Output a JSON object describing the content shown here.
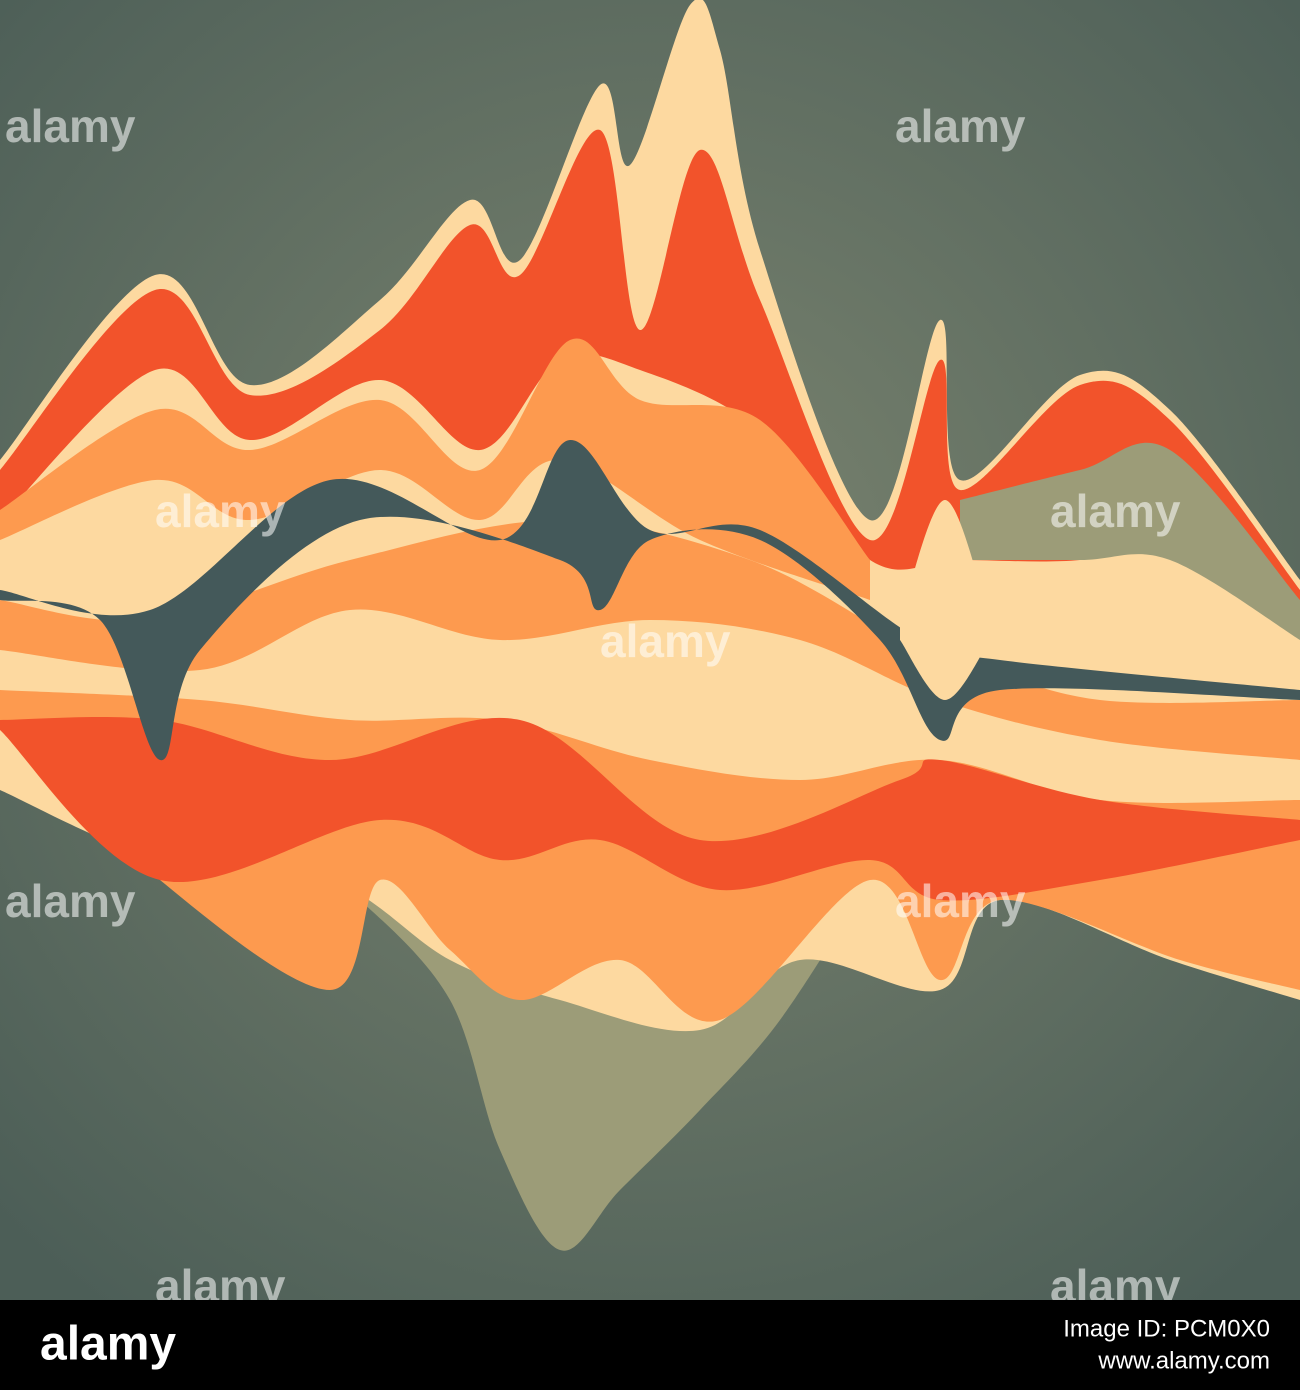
{
  "watermarks": [
    "alamy",
    "alamy",
    "alamy",
    "alamy",
    "alamy",
    "alamy",
    "alamy",
    "alamy",
    "alamy"
  ],
  "footer": {
    "logo": "alamy",
    "image_id": "Image ID: PCM0X0",
    "url": "www.alamy.com"
  }
}
